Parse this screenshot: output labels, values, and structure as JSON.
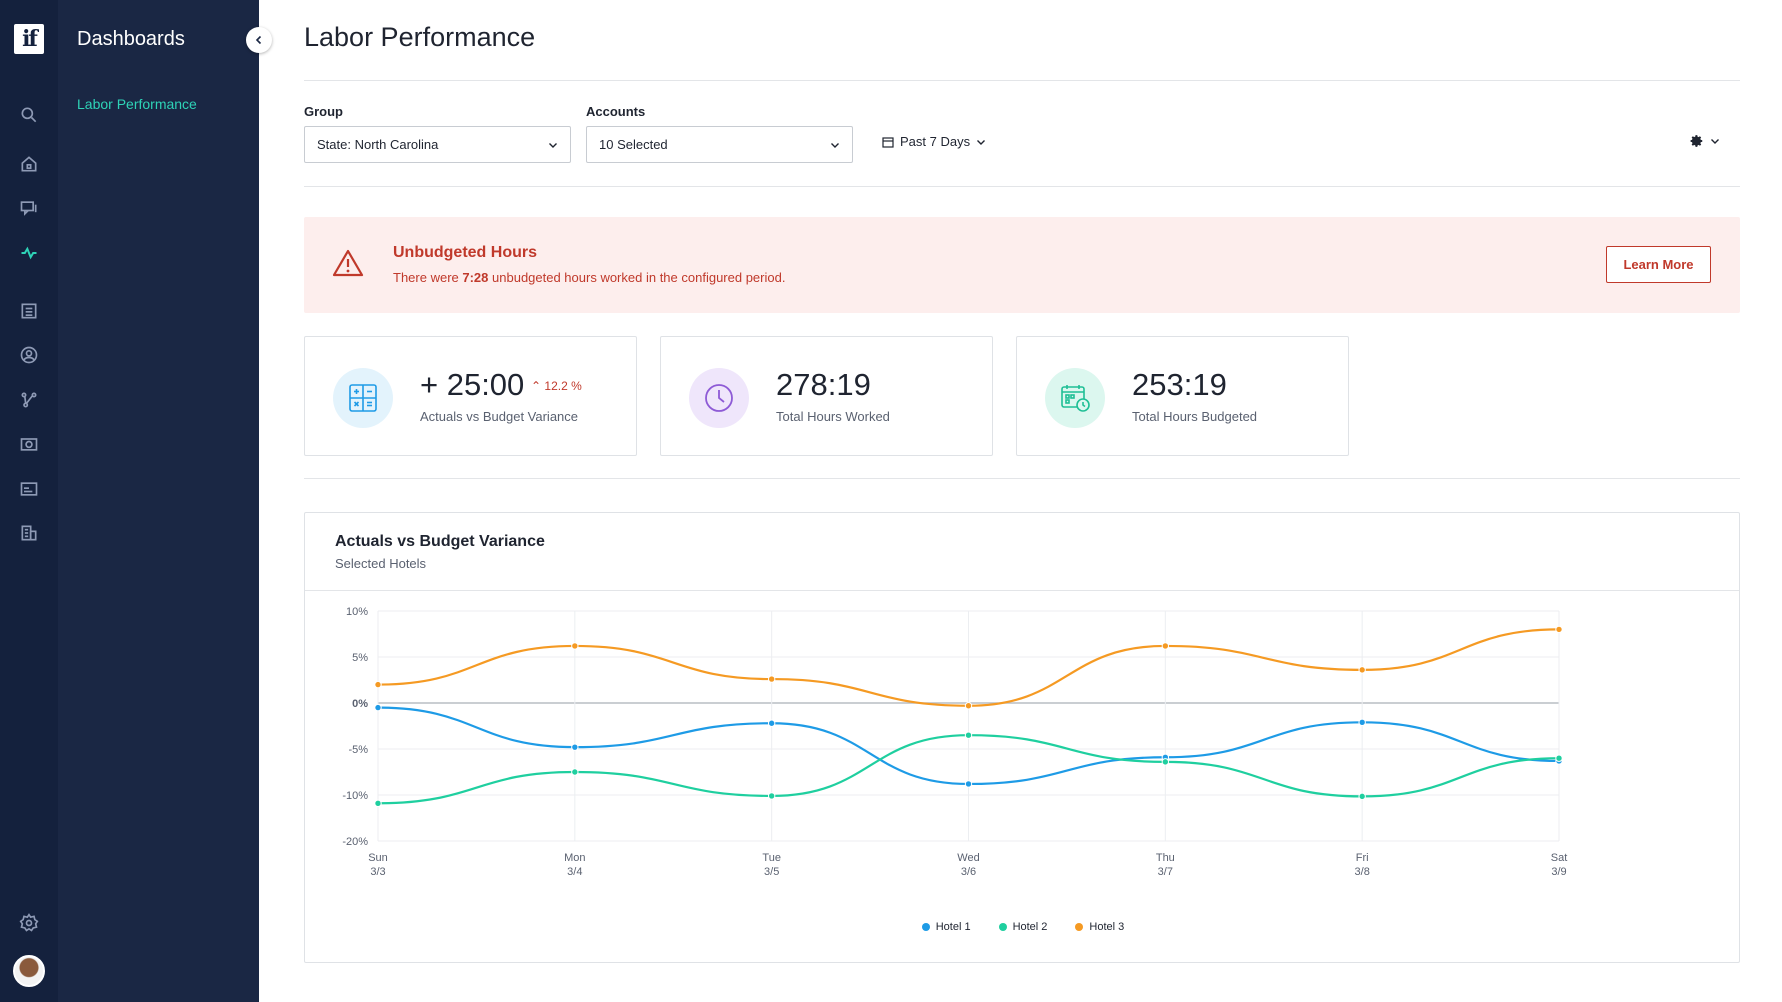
{
  "app": {
    "logo_text": "if"
  },
  "nav": {
    "title": "Dashboards",
    "active_item": "Labor Performance"
  },
  "page": {
    "title": "Labor Performance"
  },
  "filters": {
    "group_label": "Group",
    "group_value": "State: North Carolina",
    "accounts_label": "Accounts",
    "accounts_value": "10 Selected",
    "date_range": "Past 7 Days"
  },
  "alert": {
    "title": "Unbudgeted Hours",
    "text_before": "There were ",
    "text_bold": "7:28",
    "text_after": " unbudgeted hours worked in the configured period.",
    "button": "Learn More"
  },
  "stats": [
    {
      "value": "+ 25:00",
      "delta": "12.2 %",
      "label": "Actuals vs Budget Variance"
    },
    {
      "value": "278:19",
      "label": "Total Hours Worked"
    },
    {
      "value": "253:19",
      "label": "Total Hours Budgeted"
    }
  ],
  "chart_card": {
    "title": "Actuals vs Budget Variance",
    "subtitle": "Selected Hotels"
  },
  "colors": {
    "hotel1": "#1e9be6",
    "hotel2": "#1fcf9f",
    "hotel3": "#f59a23",
    "alert": "#c0392b",
    "accent": "#2ed3b7"
  },
  "chart_data": {
    "type": "line",
    "categories": [
      [
        "Sun",
        "3/3"
      ],
      [
        "Mon",
        "3/4"
      ],
      [
        "Tue",
        "3/5"
      ],
      [
        "Wed",
        "3/6"
      ],
      [
        "Thu",
        "3/7"
      ],
      [
        "Fri",
        "3/8"
      ],
      [
        "Sat",
        "3/9"
      ]
    ],
    "y_ticks": [
      10,
      5,
      0,
      -5,
      -10,
      -20
    ],
    "y_tick_labels": [
      "10%",
      "5%",
      "0%",
      "-5%",
      "-10%",
      "-20%"
    ],
    "series": [
      {
        "name": "Hotel 1",
        "color": "#1e9be6",
        "values": [
          -0.5,
          -4.8,
          -2.2,
          -8.8,
          -5.9,
          -2.1,
          -6.3
        ]
      },
      {
        "name": "Hotel 2",
        "color": "#1fcf9f",
        "values": [
          -11.8,
          -7.5,
          -10.2,
          -3.5,
          -6.4,
          -10.3,
          -6.0
        ]
      },
      {
        "name": "Hotel 3",
        "color": "#f59a23",
        "values": [
          2.0,
          6.2,
          2.6,
          -0.3,
          6.2,
          3.6,
          8.0
        ]
      }
    ],
    "grid": true,
    "legend_position": "bottom"
  }
}
